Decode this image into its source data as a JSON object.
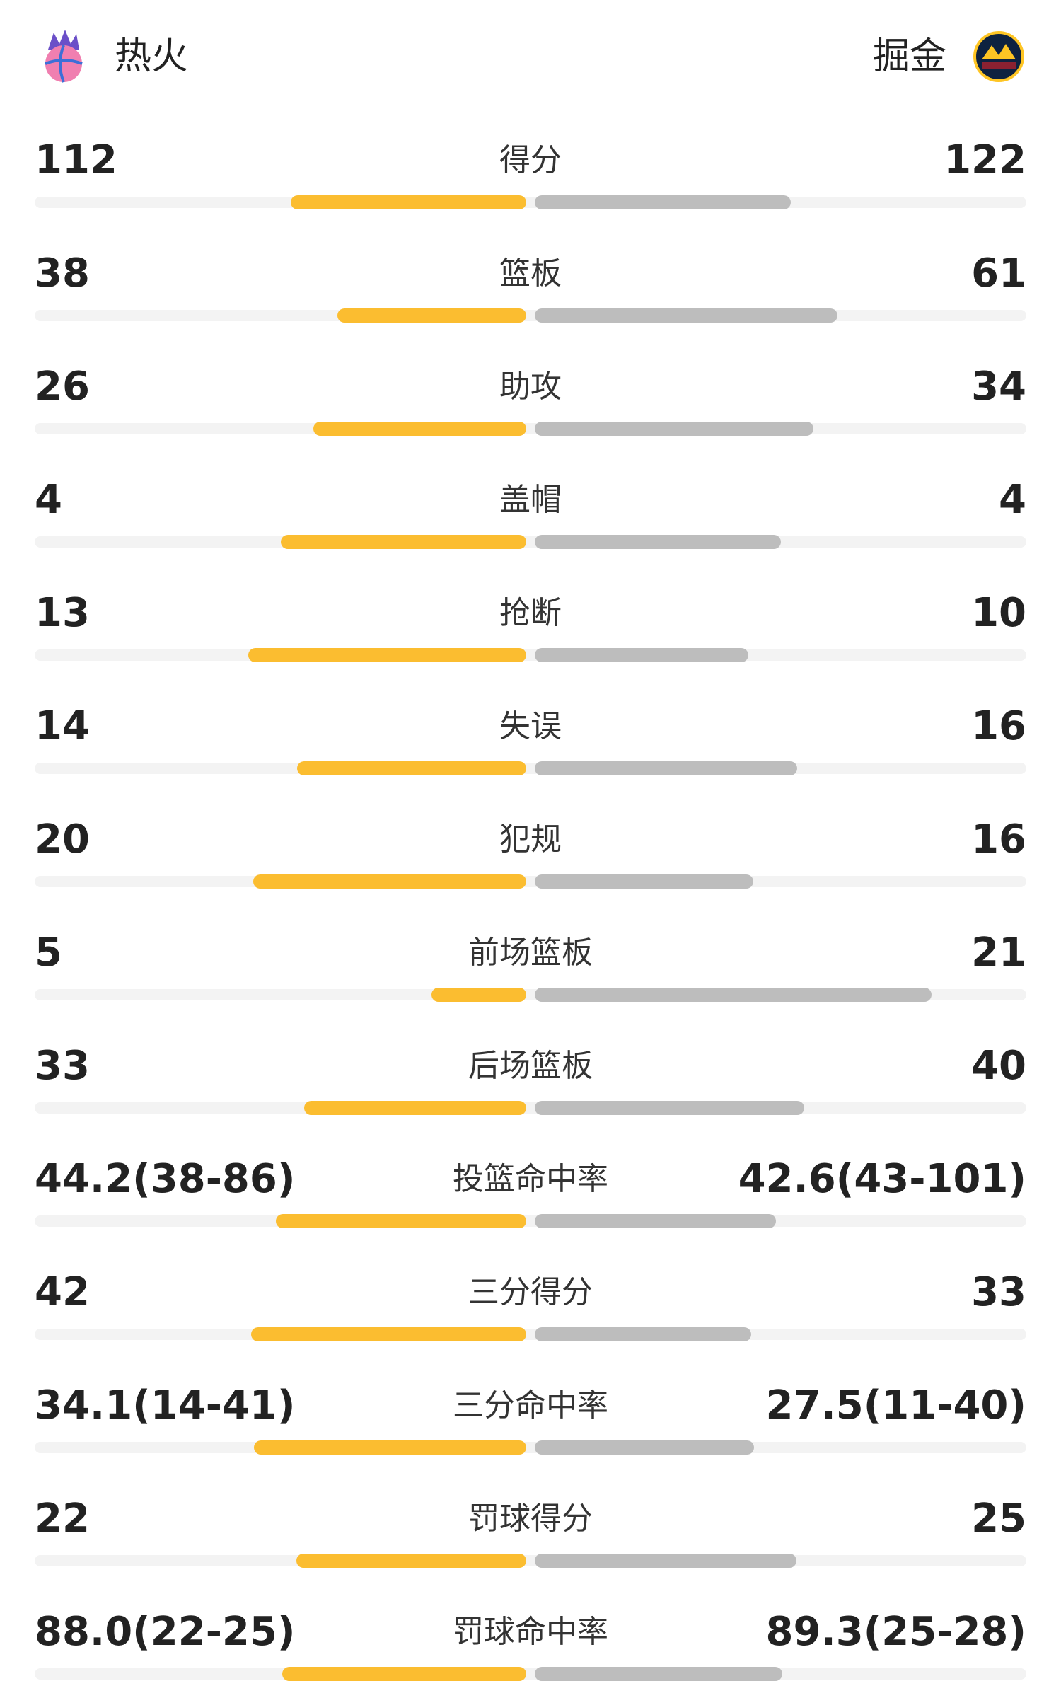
{
  "header": {
    "home_team": "热火",
    "away_team": "掘金"
  },
  "rows": [
    {
      "label": "得分",
      "home": 112,
      "away": 122
    },
    {
      "label": "篮板",
      "home": 38,
      "away": 61
    },
    {
      "label": "助攻",
      "home": 26,
      "away": 34
    },
    {
      "label": "盖帽",
      "home": 4,
      "away": 4
    },
    {
      "label": "抢断",
      "home": 13,
      "away": 10
    },
    {
      "label": "失误",
      "home": 14,
      "away": 16
    },
    {
      "label": "犯规",
      "home": 20,
      "away": 16
    },
    {
      "label": "前场篮板",
      "home": 5,
      "away": 21
    },
    {
      "label": "后场篮板",
      "home": 33,
      "away": 40
    },
    {
      "label": "投篮命中率",
      "home": 44.2,
      "away": 42.6,
      "home_label": "44.2(38-86)",
      "away_label": "42.6(43-101)"
    },
    {
      "label": "三分得分",
      "home": 42,
      "away": 33
    },
    {
      "label": "三分命中率",
      "home": 34.1,
      "away": 27.5,
      "home_label": "34.1(14-41)",
      "away_label": "27.5(11-40)"
    },
    {
      "label": "罚球得分",
      "home": 22,
      "away": 25
    },
    {
      "label": "罚球命中率",
      "home": 88.0,
      "away": 89.3,
      "home_label": "88.0(22-25)",
      "away_label": "89.3(25-28)"
    }
  ]
}
